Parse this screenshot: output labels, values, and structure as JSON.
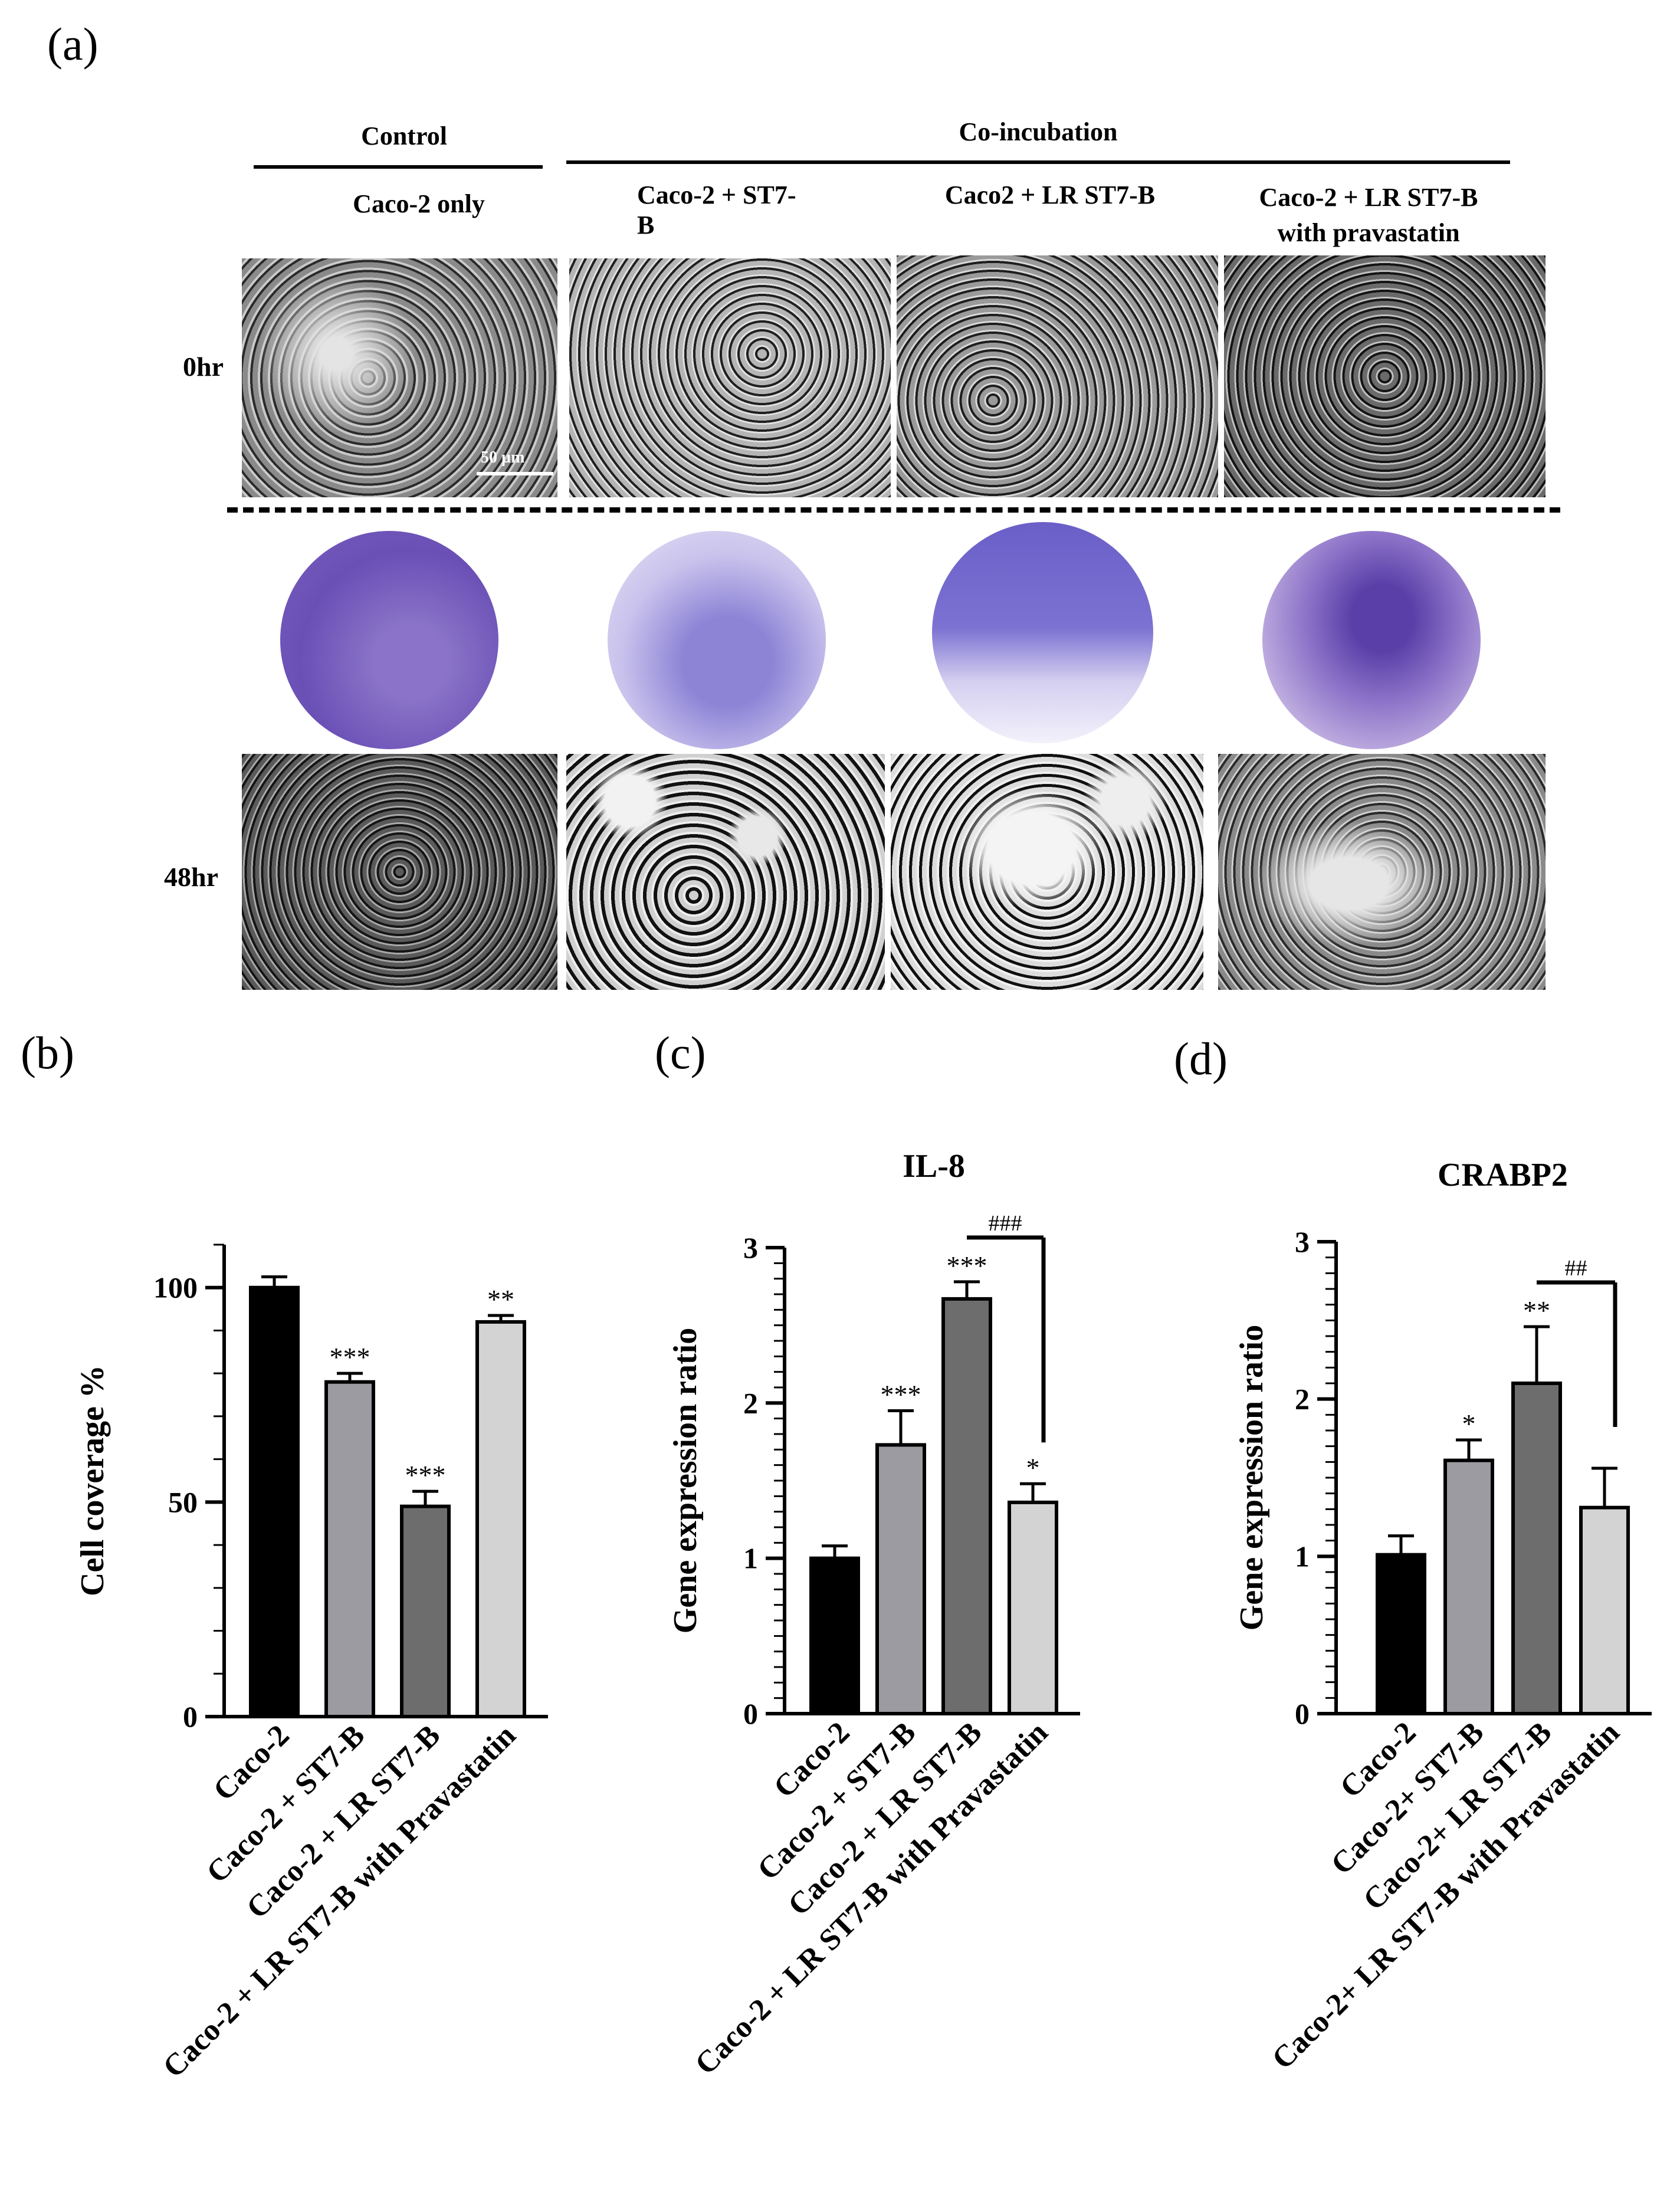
{
  "panel_a": {
    "letter": "(a)",
    "group_control": "Control",
    "group_coincubation": "Co-incubation",
    "col_labels": [
      "Caco-2 only",
      "Caco-2 + ST7-\nB",
      "Caco2 + LR ST7-B",
      "Caco-2 + LR ST7-B\nwith pravastatin"
    ],
    "row_labels": [
      "0hr",
      "48hr"
    ],
    "scale_bar": "50 µm"
  },
  "chart_data": [
    {
      "type": "bar",
      "panel": "(b)",
      "title": "",
      "ylabel": "Cell coverage %",
      "xlabel": "",
      "ylim": [
        0,
        110
      ],
      "yticks": [
        0,
        50,
        100
      ],
      "categories": [
        "Caco-2",
        "Caco-2 + ST7-B",
        "Caco-2 + LR ST7-B",
        "Caco-2 + LR ST7-B with Pravastatin"
      ],
      "values": [
        100,
        78,
        49,
        92
      ],
      "errors": [
        2.5,
        2,
        3.5,
        1.5
      ],
      "annotations": [
        "",
        "***",
        "***",
        "**"
      ],
      "colors": [
        "#000000",
        "#9b9ba1",
        "#6d6d6d",
        "#d3d3d3"
      ]
    },
    {
      "type": "bar",
      "panel": "(c)",
      "title": "IL-8",
      "ylabel": "Gene expression ratio",
      "xlabel": "",
      "ylim": [
        0,
        3
      ],
      "yticks": [
        0,
        1,
        2,
        3
      ],
      "categories": [
        "Caco-2",
        "Caco-2 + ST7-B",
        "Caco-2 + LR ST7-B",
        "Caco-2 + LR ST7-B with Pravastatin"
      ],
      "values": [
        1.0,
        1.73,
        2.67,
        1.36
      ],
      "errors": [
        0.08,
        0.22,
        0.11,
        0.12
      ],
      "annotations": [
        "",
        "***",
        "***",
        "*"
      ],
      "comparison": {
        "from": 2,
        "to": 3,
        "label": "###"
      },
      "colors": [
        "#000000",
        "#9b9ba1",
        "#6d6d6d",
        "#d3d3d3"
      ]
    },
    {
      "type": "bar",
      "panel": "(d)",
      "title": "CRABP2",
      "ylabel": "Gene expression ratio",
      "xlabel": "",
      "ylim": [
        0,
        3
      ],
      "yticks": [
        0,
        1,
        2,
        3
      ],
      "categories": [
        "Caco-2",
        "Caco-2+ ST7-B",
        "Caco-2+ LR ST7-B",
        "Caco-2+ LR ST7-B with Pravastatin"
      ],
      "values": [
        1.01,
        1.61,
        2.1,
        1.31
      ],
      "errors": [
        0.12,
        0.13,
        0.36,
        0.25
      ],
      "annotations": [
        "",
        "*",
        "**",
        ""
      ],
      "comparison": {
        "from": 2,
        "to": 3,
        "label": "##"
      },
      "colors": [
        "#000000",
        "#9b9ba1",
        "#6d6d6d",
        "#d3d3d3"
      ]
    }
  ]
}
